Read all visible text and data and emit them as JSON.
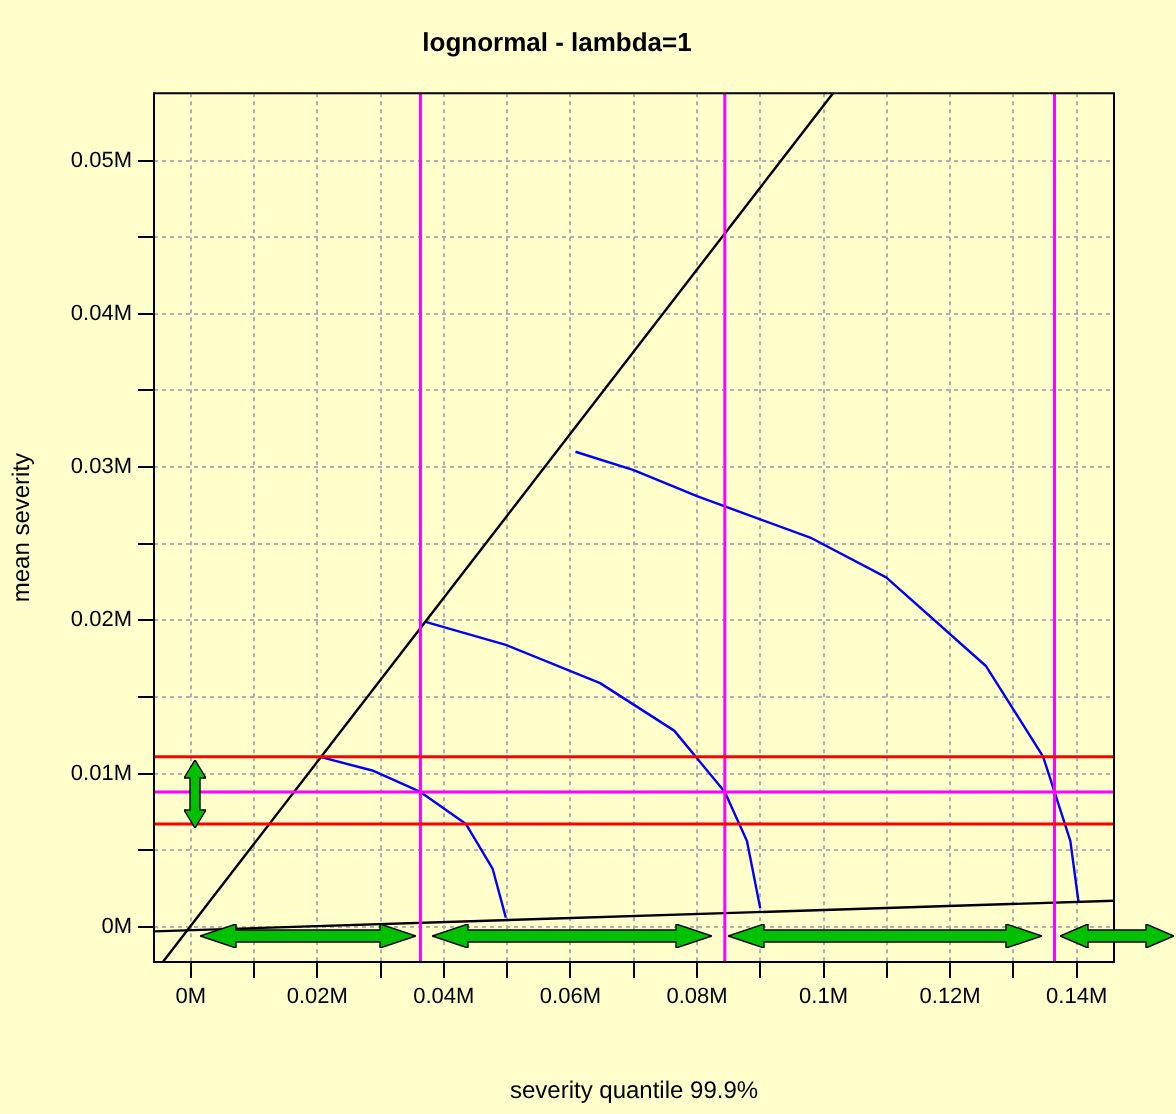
{
  "chart_data": {
    "type": "line",
    "title": "lognormal - lambda=1",
    "xlabel": "severity quantile 99.9%",
    "ylabel": "mean severity",
    "xlim": [
      -0.0058,
      0.1459
    ],
    "ylim": [
      -0.0023,
      0.0544
    ],
    "xticks": [
      {
        "value": 0,
        "label": "0M"
      },
      {
        "value": 0.01,
        "label": null
      },
      {
        "value": 0.02,
        "label": "0.02M"
      },
      {
        "value": 0.03,
        "label": null
      },
      {
        "value": 0.04,
        "label": "0.04M"
      },
      {
        "value": 0.05,
        "label": null
      },
      {
        "value": 0.06,
        "label": "0.06M"
      },
      {
        "value": 0.07,
        "label": null
      },
      {
        "value": 0.08,
        "label": "0.08M"
      },
      {
        "value": 0.09,
        "label": null
      },
      {
        "value": 0.1,
        "label": "0.1M"
      },
      {
        "value": 0.11,
        "label": null
      },
      {
        "value": 0.12,
        "label": "0.12M"
      },
      {
        "value": 0.13,
        "label": null
      },
      {
        "value": 0.14,
        "label": "0.14M"
      }
    ],
    "yticks": [
      {
        "value": 0,
        "label": "0M"
      },
      {
        "value": 0.005,
        "label": null
      },
      {
        "value": 0.01,
        "label": "0.01M"
      },
      {
        "value": 0.015,
        "label": null
      },
      {
        "value": 0.02,
        "label": "0.02M"
      },
      {
        "value": 0.025,
        "label": null
      },
      {
        "value": 0.03,
        "label": "0.03M"
      },
      {
        "value": 0.035,
        "label": null
      },
      {
        "value": 0.04,
        "label": "0.04M"
      },
      {
        "value": 0.045,
        "label": null
      },
      {
        "value": 0.05,
        "label": "0.05M"
      }
    ],
    "grid": true,
    "legend": false,
    "marker": "none",
    "line_style": "solid",
    "series": [
      {
        "color": "#000000",
        "x": [
          -0.0044,
          0.1015
        ],
        "values": [
          -0.0023,
          0.0544
        ]
      },
      {
        "color": "#000000",
        "x": [
          -0.0058,
          0.1459
        ],
        "values": [
          -0.0003,
          0.0017
        ]
      },
      {
        "color": "#0000ff",
        "x": [
          0.0203,
          0.0287,
          0.0363,
          0.0435,
          0.0477,
          0.0498
        ],
        "values": [
          0.0111,
          0.0102,
          0.0088,
          0.0067,
          0.0038,
          0.0006
        ]
      },
      {
        "color": "#0000ff",
        "x": [
          0.0371,
          0.0498,
          0.0647,
          0.0764,
          0.0844,
          0.0879,
          0.09
        ],
        "values": [
          0.0199,
          0.0184,
          0.0159,
          0.0128,
          0.0088,
          0.0056,
          0.0012
        ]
      },
      {
        "color": "#0000ff",
        "x": [
          0.0608,
          0.07,
          0.08,
          0.0979,
          0.1099,
          0.1257,
          0.1347,
          0.1365,
          0.139,
          0.1403
        ],
        "values": [
          0.031,
          0.0298,
          0.0281,
          0.0254,
          0.0228,
          0.017,
          0.0111,
          0.0088,
          0.0056,
          0.0016
        ]
      }
    ],
    "ref_lines": [
      {
        "axis": "x",
        "value": 0.0363,
        "color": "#ff00ff"
      },
      {
        "axis": "x",
        "value": 0.0844,
        "color": "#ff00ff"
      },
      {
        "axis": "x",
        "value": 0.1365,
        "color": "#ff00ff"
      },
      {
        "axis": "y",
        "value": 0.0111,
        "color": "#ff0000"
      },
      {
        "axis": "y",
        "value": 0.0088,
        "color": "#ff00ff"
      },
      {
        "axis": "y",
        "value": 0.0067,
        "color": "#ff0000"
      }
    ]
  }
}
